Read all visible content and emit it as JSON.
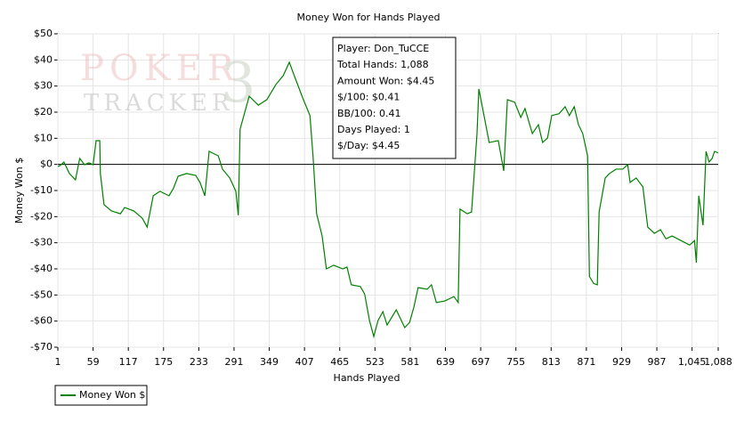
{
  "chart_data": {
    "type": "line",
    "title": "Money Won for Hands Played",
    "x_label": "Hands Played",
    "y_label": "Money Won $",
    "x": [
      1,
      5,
      11,
      20,
      30,
      37,
      45,
      52,
      59,
      64,
      70,
      71,
      77,
      89,
      104,
      111,
      126,
      140,
      148,
      158,
      169,
      184,
      191,
      199,
      213,
      228,
      235,
      243,
      250,
      265,
      272,
      284,
      294,
      298,
      301,
      316,
      331,
      345,
      360,
      372,
      382,
      389,
      404,
      416,
      421,
      427,
      436,
      443,
      455,
      470,
      477,
      484,
      499,
      506,
      514,
      521,
      528,
      536,
      543,
      558,
      572,
      580,
      587,
      594,
      609,
      616,
      624,
      638,
      653,
      660,
      663,
      675,
      682,
      691,
      694,
      704,
      711,
      726,
      735,
      741,
      753,
      763,
      770,
      782,
      792,
      799,
      807,
      814,
      826,
      836,
      843,
      851,
      858,
      865,
      873,
      876,
      883,
      889,
      892,
      902,
      909,
      920,
      931,
      939,
      943,
      953,
      964,
      972,
      983,
      993,
      1002,
      1012,
      1027,
      1041,
      1049,
      1052,
      1056,
      1063,
      1068,
      1073,
      1078,
      1082,
      1088
    ],
    "series": [
      {
        "name": "Money Won $",
        "color": "#008000",
        "values": [
          -0.8,
          -0.4,
          0.9,
          -3.5,
          -5.9,
          2.3,
          -0.1,
          0.6,
          -0.1,
          9.1,
          9.1,
          -3.5,
          -15.4,
          -17.8,
          -18.9,
          -16.5,
          -17.8,
          -20.6,
          -24,
          -12,
          -10.3,
          -12,
          -9.3,
          -4.5,
          -3.5,
          -4.2,
          -6.9,
          -12,
          5,
          3.3,
          -1.8,
          -5.2,
          -10.3,
          -19.5,
          13.5,
          26.1,
          22.7,
          24.8,
          30.6,
          34,
          39.1,
          34.7,
          25.5,
          18.7,
          3.3,
          -18.9,
          -27.4,
          -40,
          -38.6,
          -40,
          -39.3,
          -46.1,
          -46.8,
          -49.6,
          -59.8,
          -65.9,
          -59.8,
          -56.4,
          -61.5,
          -55.7,
          -62.5,
          -60.5,
          -54.7,
          -47.2,
          -47.8,
          -46.1,
          -52.9,
          -52.3,
          -50.6,
          -52.9,
          -17.1,
          -18.9,
          -18.2,
          11.8,
          28.9,
          16.9,
          8.4,
          9.1,
          -2.5,
          24.8,
          23.8,
          18,
          21.4,
          11.8,
          15.2,
          8.4,
          10.1,
          18.7,
          19.4,
          22.1,
          18.7,
          22.1,
          15.2,
          11.8,
          3.3,
          -42.9,
          -45.6,
          -46.1,
          -18.2,
          -5.2,
          -3.5,
          -1.8,
          -1.8,
          -0.1,
          -6.9,
          -5.2,
          -8.6,
          -24,
          -26.4,
          -25,
          -28.5,
          -27.4,
          -29.2,
          -30.9,
          -29.2,
          -37.6,
          -12,
          -23.3,
          5,
          0.9,
          2.3,
          5,
          4.4
        ]
      }
    ],
    "xlim": [
      1,
      1088
    ],
    "ylim": [
      -70,
      50
    ],
    "xticks": [
      1,
      59,
      117,
      175,
      233,
      291,
      349,
      407,
      465,
      523,
      581,
      639,
      697,
      755,
      813,
      871,
      929,
      987,
      {
        "value": 1045,
        "label": "1,045"
      },
      {
        "value": 1088,
        "label": "1,088"
      }
    ],
    "yticks": [
      {
        "value": -70,
        "label": "-$70"
      },
      {
        "value": -60,
        "label": "-$60"
      },
      {
        "value": -50,
        "label": "-$50"
      },
      {
        "value": -40,
        "label": "-$40"
      },
      {
        "value": -30,
        "label": "-$30"
      },
      {
        "value": -20,
        "label": "-$20"
      },
      {
        "value": -10,
        "label": "-$10"
      },
      {
        "value": 0,
        "label": "$0"
      },
      {
        "value": 10,
        "label": "$10"
      },
      {
        "value": 20,
        "label": "$20"
      },
      {
        "value": 30,
        "label": "$30"
      },
      {
        "value": 40,
        "label": "$40"
      },
      {
        "value": 50,
        "label": "$50"
      }
    ],
    "grid": true,
    "legend": "bottom-left",
    "annotations": [
      "Player: Don_TuCCE",
      "Total Hands: 1,088",
      "Amount Won: $4.45",
      "$/100: $0.41",
      "BB/100: 0.41",
      "Days Played: 1",
      "$/Day: $4.45"
    ],
    "watermark": {
      "line1": "POKER",
      "line2": "TRACKER",
      "mark": "3"
    }
  }
}
